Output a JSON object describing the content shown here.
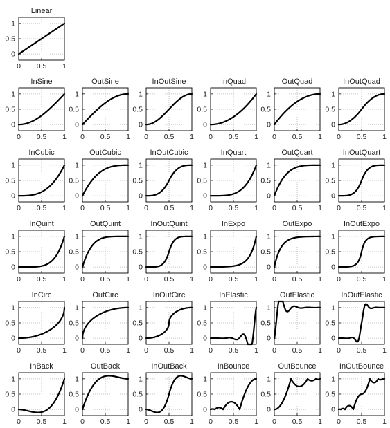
{
  "chart_data": [
    {
      "type": "line",
      "title": "Linear",
      "function": "linear",
      "xlim": [
        0,
        1
      ],
      "ylim": [
        -0.2,
        1.2
      ],
      "xticks": [
        "0",
        "0.5",
        "1"
      ],
      "yticks": [
        "0",
        "0.5",
        "1"
      ],
      "grid": true
    },
    {
      "type": "line",
      "title": "InSine",
      "function": "inSine",
      "xlim": [
        0,
        1
      ],
      "ylim": [
        -0.2,
        1.2
      ],
      "xticks": [
        "0",
        "0.5",
        "1"
      ],
      "yticks": [
        "0",
        "0.5",
        "1"
      ],
      "grid": true
    },
    {
      "type": "line",
      "title": "OutSine",
      "function": "outSine",
      "xlim": [
        0,
        1
      ],
      "ylim": [
        -0.2,
        1.2
      ],
      "xticks": [
        "0",
        "0.5",
        "1"
      ],
      "yticks": [
        "0",
        "0.5",
        "1"
      ],
      "grid": true
    },
    {
      "type": "line",
      "title": "InOutSine",
      "function": "inOutSine",
      "xlim": [
        0,
        1
      ],
      "ylim": [
        -0.2,
        1.2
      ],
      "xticks": [
        "0",
        "0.5",
        "1"
      ],
      "yticks": [
        "0",
        "0.5",
        "1"
      ],
      "grid": true
    },
    {
      "type": "line",
      "title": "InQuad",
      "function": "inQuad",
      "xlim": [
        0,
        1
      ],
      "ylim": [
        -0.2,
        1.2
      ],
      "xticks": [
        "0",
        "0.5",
        "1"
      ],
      "yticks": [
        "0",
        "0.5",
        "1"
      ],
      "grid": true
    },
    {
      "type": "line",
      "title": "OutQuad",
      "function": "outQuad",
      "xlim": [
        0,
        1
      ],
      "ylim": [
        -0.2,
        1.2
      ],
      "xticks": [
        "0",
        "0.5",
        "1"
      ],
      "yticks": [
        "0",
        "0.5",
        "1"
      ],
      "grid": true
    },
    {
      "type": "line",
      "title": "InOutQuad",
      "function": "inOutQuad",
      "xlim": [
        0,
        1
      ],
      "ylim": [
        -0.2,
        1.2
      ],
      "xticks": [
        "0",
        "0.5",
        "1"
      ],
      "yticks": [
        "0",
        "0.5",
        "1"
      ],
      "grid": true
    },
    {
      "type": "line",
      "title": "InCubic",
      "function": "inCubic",
      "xlim": [
        0,
        1
      ],
      "ylim": [
        -0.2,
        1.2
      ],
      "xticks": [
        "0",
        "0.5",
        "1"
      ],
      "yticks": [
        "0",
        "0.5",
        "1"
      ],
      "grid": true
    },
    {
      "type": "line",
      "title": "OutCubic",
      "function": "outCubic",
      "xlim": [
        0,
        1
      ],
      "ylim": [
        -0.2,
        1.2
      ],
      "xticks": [
        "0",
        "0.5",
        "1"
      ],
      "yticks": [
        "0",
        "0.5",
        "1"
      ],
      "grid": true
    },
    {
      "type": "line",
      "title": "InOutCubic",
      "function": "inOutCubic",
      "xlim": [
        0,
        1
      ],
      "ylim": [
        -0.2,
        1.2
      ],
      "xticks": [
        "0",
        "0.5",
        "1"
      ],
      "yticks": [
        "0",
        "0.5",
        "1"
      ],
      "grid": true
    },
    {
      "type": "line",
      "title": "InQuart",
      "function": "inQuart",
      "xlim": [
        0,
        1
      ],
      "ylim": [
        -0.2,
        1.2
      ],
      "xticks": [
        "0",
        "0.5",
        "1"
      ],
      "yticks": [
        "0",
        "0.5",
        "1"
      ],
      "grid": true
    },
    {
      "type": "line",
      "title": "OutQuart",
      "function": "outQuart",
      "xlim": [
        0,
        1
      ],
      "ylim": [
        -0.2,
        1.2
      ],
      "xticks": [
        "0",
        "0.5",
        "1"
      ],
      "yticks": [
        "0",
        "0.5",
        "1"
      ],
      "grid": true
    },
    {
      "type": "line",
      "title": "InOutQuart",
      "function": "inOutQuart",
      "xlim": [
        0,
        1
      ],
      "ylim": [
        -0.2,
        1.2
      ],
      "xticks": [
        "0",
        "0.5",
        "1"
      ],
      "yticks": [
        "0",
        "0.5",
        "1"
      ],
      "grid": true
    },
    {
      "type": "line",
      "title": "InQuint",
      "function": "inQuint",
      "xlim": [
        0,
        1
      ],
      "ylim": [
        -0.2,
        1.2
      ],
      "xticks": [
        "0",
        "0.5",
        "1"
      ],
      "yticks": [
        "0",
        "0.5",
        "1"
      ],
      "grid": true
    },
    {
      "type": "line",
      "title": "OutQuint",
      "function": "outQuint",
      "xlim": [
        0,
        1
      ],
      "ylim": [
        -0.2,
        1.2
      ],
      "xticks": [
        "0",
        "0.5",
        "1"
      ],
      "yticks": [
        "0",
        "0.5",
        "1"
      ],
      "grid": true
    },
    {
      "type": "line",
      "title": "InOutQuint",
      "function": "inOutQuint",
      "xlim": [
        0,
        1
      ],
      "ylim": [
        -0.2,
        1.2
      ],
      "xticks": [
        "0",
        "0.5",
        "1"
      ],
      "yticks": [
        "0",
        "0.5",
        "1"
      ],
      "grid": true
    },
    {
      "type": "line",
      "title": "InExpo",
      "function": "inExpo",
      "xlim": [
        0,
        1
      ],
      "ylim": [
        -0.2,
        1.2
      ],
      "xticks": [
        "0",
        "0.5",
        "1"
      ],
      "yticks": [
        "0",
        "0.5",
        "1"
      ],
      "grid": true
    },
    {
      "type": "line",
      "title": "OutExpo",
      "function": "outExpo",
      "xlim": [
        0,
        1
      ],
      "ylim": [
        -0.2,
        1.2
      ],
      "xticks": [
        "0",
        "0.5",
        "1"
      ],
      "yticks": [
        "0",
        "0.5",
        "1"
      ],
      "grid": true
    },
    {
      "type": "line",
      "title": "InOutExpo",
      "function": "inOutExpo",
      "xlim": [
        0,
        1
      ],
      "ylim": [
        -0.2,
        1.2
      ],
      "xticks": [
        "0",
        "0.5",
        "1"
      ],
      "yticks": [
        "0",
        "0.5",
        "1"
      ],
      "grid": true
    },
    {
      "type": "line",
      "title": "InCirc",
      "function": "inCirc",
      "xlim": [
        0,
        1
      ],
      "ylim": [
        -0.2,
        1.2
      ],
      "xticks": [
        "0",
        "0.5",
        "1"
      ],
      "yticks": [
        "0",
        "0.5",
        "1"
      ],
      "grid": true
    },
    {
      "type": "line",
      "title": "OutCirc",
      "function": "outCirc",
      "xlim": [
        0,
        1
      ],
      "ylim": [
        -0.2,
        1.2
      ],
      "xticks": [
        "0",
        "0.5",
        "1"
      ],
      "yticks": [
        "0",
        "0.5",
        "1"
      ],
      "grid": true
    },
    {
      "type": "line",
      "title": "InOutCirc",
      "function": "inOutCirc",
      "xlim": [
        0,
        1
      ],
      "ylim": [
        -0.2,
        1.2
      ],
      "xticks": [
        "0",
        "0.5",
        "1"
      ],
      "yticks": [
        "0",
        "0.5",
        "1"
      ],
      "grid": true
    },
    {
      "type": "line",
      "title": "InElastic",
      "function": "inElastic",
      "xlim": [
        0,
        1
      ],
      "ylim": [
        -0.2,
        1.2
      ],
      "xticks": [
        "0",
        "0.5",
        "1"
      ],
      "yticks": [
        "0",
        "0.5",
        "1"
      ],
      "grid": true
    },
    {
      "type": "line",
      "title": "OutElastic",
      "function": "outElastic",
      "xlim": [
        0,
        1
      ],
      "ylim": [
        -0.2,
        1.2
      ],
      "xticks": [
        "0",
        "0.5",
        "1"
      ],
      "yticks": [
        "0",
        "0.5",
        "1"
      ],
      "grid": true
    },
    {
      "type": "line",
      "title": "InOutElastic",
      "function": "inOutElastic",
      "xlim": [
        0,
        1
      ],
      "ylim": [
        -0.2,
        1.2
      ],
      "xticks": [
        "0",
        "0.5",
        "1"
      ],
      "yticks": [
        "0",
        "0.5",
        "1"
      ],
      "grid": true
    },
    {
      "type": "line",
      "title": "InBack",
      "function": "inBack",
      "xlim": [
        0,
        1
      ],
      "ylim": [
        -0.2,
        1.2
      ],
      "xticks": [
        "0",
        "0.5",
        "1"
      ],
      "yticks": [
        "0",
        "0.5",
        "1"
      ],
      "grid": true
    },
    {
      "type": "line",
      "title": "OutBack",
      "function": "outBack",
      "xlim": [
        0,
        1
      ],
      "ylim": [
        -0.2,
        1.2
      ],
      "xticks": [
        "0",
        "0.5",
        "1"
      ],
      "yticks": [
        "0",
        "0.5",
        "1"
      ],
      "grid": true
    },
    {
      "type": "line",
      "title": "InOutBack",
      "function": "inOutBack",
      "xlim": [
        0,
        1
      ],
      "ylim": [
        -0.2,
        1.2
      ],
      "xticks": [
        "0",
        "0.5",
        "1"
      ],
      "yticks": [
        "0",
        "0.5",
        "1"
      ],
      "grid": true
    },
    {
      "type": "line",
      "title": "InBounce",
      "function": "inBounce",
      "xlim": [
        0,
        1
      ],
      "ylim": [
        -0.2,
        1.2
      ],
      "xticks": [
        "0",
        "0.5",
        "1"
      ],
      "yticks": [
        "0",
        "0.5",
        "1"
      ],
      "grid": true
    },
    {
      "type": "line",
      "title": "OutBounce",
      "function": "outBounce",
      "xlim": [
        0,
        1
      ],
      "ylim": [
        -0.2,
        1.2
      ],
      "xticks": [
        "0",
        "0.5",
        "1"
      ],
      "yticks": [
        "0",
        "0.5",
        "1"
      ],
      "grid": true
    },
    {
      "type": "line",
      "title": "InOutBounce",
      "function": "inOutBounce",
      "xlim": [
        0,
        1
      ],
      "ylim": [
        -0.2,
        1.2
      ],
      "xticks": [
        "0",
        "0.5",
        "1"
      ],
      "yticks": [
        "0",
        "0.5",
        "1"
      ],
      "grid": true
    }
  ],
  "colors": {
    "line": "#000000",
    "axes": "#000000",
    "grid": "#b4b4b4",
    "text": "#222222"
  }
}
